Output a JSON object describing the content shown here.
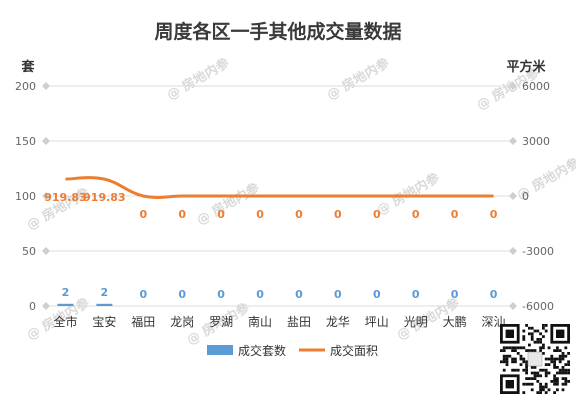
{
  "chart_data": {
    "type": "bar",
    "title": "周度各区一手其他成交量数据",
    "categories": [
      "全市",
      "宝安",
      "福田",
      "龙岗",
      "罗湖",
      "南山",
      "盐田",
      "龙华",
      "坪山",
      "光明",
      "大鹏",
      "深汕"
    ],
    "series": [
      {
        "name": "成交套数",
        "type": "bar",
        "axis": "left",
        "color": "#5b9bd5",
        "values": [
          2,
          2,
          0,
          0,
          0,
          0,
          0,
          0,
          0,
          0,
          0,
          0
        ],
        "labels": [
          "2",
          "2",
          "0",
          "0",
          "0",
          "0",
          "0",
          "0",
          "0",
          "0",
          "0",
          "0"
        ]
      },
      {
        "name": "成交面积",
        "type": "line",
        "axis": "right",
        "color": "#ed7d31",
        "values": [
          919.83,
          919.83,
          0,
          0,
          0,
          0,
          0,
          0,
          0,
          0,
          0,
          0
        ],
        "labels": [
          "919.83",
          "919.83",
          "0",
          "0",
          "0",
          "0",
          "0",
          "0",
          "0",
          "0",
          "0",
          "0"
        ]
      }
    ],
    "y_left": {
      "unit": "套",
      "ylim": [
        0,
        200
      ],
      "ticks": [
        0,
        50,
        100,
        150,
        200
      ],
      "tick_labels": [
        "0",
        "50",
        "100",
        "150",
        "200"
      ]
    },
    "y_right": {
      "unit": "平方米",
      "ylim": [
        -6000,
        6000
      ],
      "ticks": [
        -6000,
        -3000,
        0,
        3000,
        6000
      ],
      "tick_labels": [
        "-6000",
        "-3000",
        "0",
        "3000",
        "6000"
      ]
    },
    "grid": true,
    "legend": "bottom"
  },
  "watermark": "@ 房地内参"
}
